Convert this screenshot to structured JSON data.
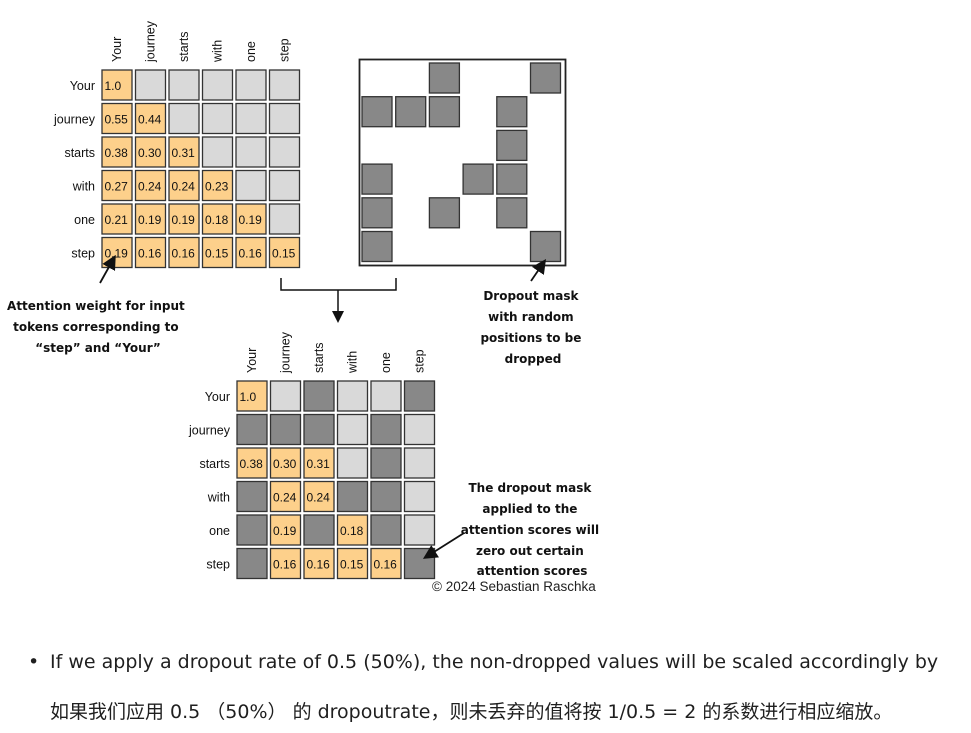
{
  "tokens": [
    "Your",
    "journey",
    "starts",
    "with",
    "one",
    "step"
  ],
  "colors": {
    "weight_cell": "#fdd08b",
    "empty_cell": "#d9d9d9",
    "masked_cell": "#888888",
    "mask_cell": "#888888",
    "cell_border": "#333333",
    "spellcheck_underline": "#8a5cf6"
  },
  "attention_weights": [
    [
      "1.0"
    ],
    [
      "0.55",
      "0.44"
    ],
    [
      "0.38",
      "0.30",
      "0.31"
    ],
    [
      "0.27",
      "0.24",
      "0.24",
      "0.23"
    ],
    [
      "0.21",
      "0.19",
      "0.19",
      "0.18",
      "0.19"
    ],
    [
      "0.19",
      "0.16",
      "0.16",
      "0.15",
      "0.16",
      "0.15"
    ]
  ],
  "dropout_mask": [
    [
      0,
      0,
      1,
      0,
      0,
      1
    ],
    [
      1,
      1,
      1,
      0,
      1,
      0
    ],
    [
      0,
      0,
      0,
      0,
      1,
      0
    ],
    [
      1,
      0,
      0,
      1,
      1,
      0
    ],
    [
      1,
      0,
      1,
      0,
      1,
      0
    ],
    [
      1,
      0,
      0,
      0,
      0,
      1
    ]
  ],
  "dropout_result": [
    [
      "1.0",
      "empty",
      "masked",
      "empty",
      "empty",
      "masked"
    ],
    [
      "masked",
      "masked",
      "masked",
      "empty",
      "masked",
      "empty"
    ],
    [
      "0.38",
      "0.30",
      "0.31",
      "empty",
      "masked",
      "empty"
    ],
    [
      "masked",
      "0.24",
      "0.24",
      "masked",
      "masked",
      "empty"
    ],
    [
      "masked",
      "0.19",
      "masked",
      "0.18",
      "masked",
      "empty"
    ],
    [
      "masked",
      "0.16",
      "0.16",
      "0.15",
      "0.16",
      "masked"
    ]
  ],
  "annotations": {
    "attention_weight": [
      "Attention weight for input",
      "tokens corresponding to",
      "“step” and “Your”"
    ],
    "dropout_mask": [
      "Dropout mask",
      "with random",
      "positions to be",
      "dropped"
    ],
    "mask_applied": [
      "The dropout mask",
      "applied to the",
      "attention scores will",
      "zero out certain",
      "attention scores"
    ]
  },
  "copyright": "© 2024 Sebastian Raschka",
  "bullet": {
    "segments": [
      {
        "text": "If we ",
        "spell": false
      },
      {
        "text": "apply",
        "spell": true
      },
      {
        "text": " a ",
        "spell": false
      },
      {
        "text": "dropout",
        "spell": true
      },
      {
        "text": " rate of 0.5 (50%), the non-dropped ",
        "spell": false
      },
      {
        "text": "values",
        "spell": true
      },
      {
        "text": " will be ",
        "spell": false
      },
      {
        "text": "scaled",
        "spell": true
      },
      {
        "text": " accordingly by",
        "spell": false
      }
    ]
  },
  "cn_text": "如果我们应用 0.5 （50%） 的 dropoutrate，则未丢弃的值将按 1/0.5 = 2 的系数进行相应缩放。"
}
